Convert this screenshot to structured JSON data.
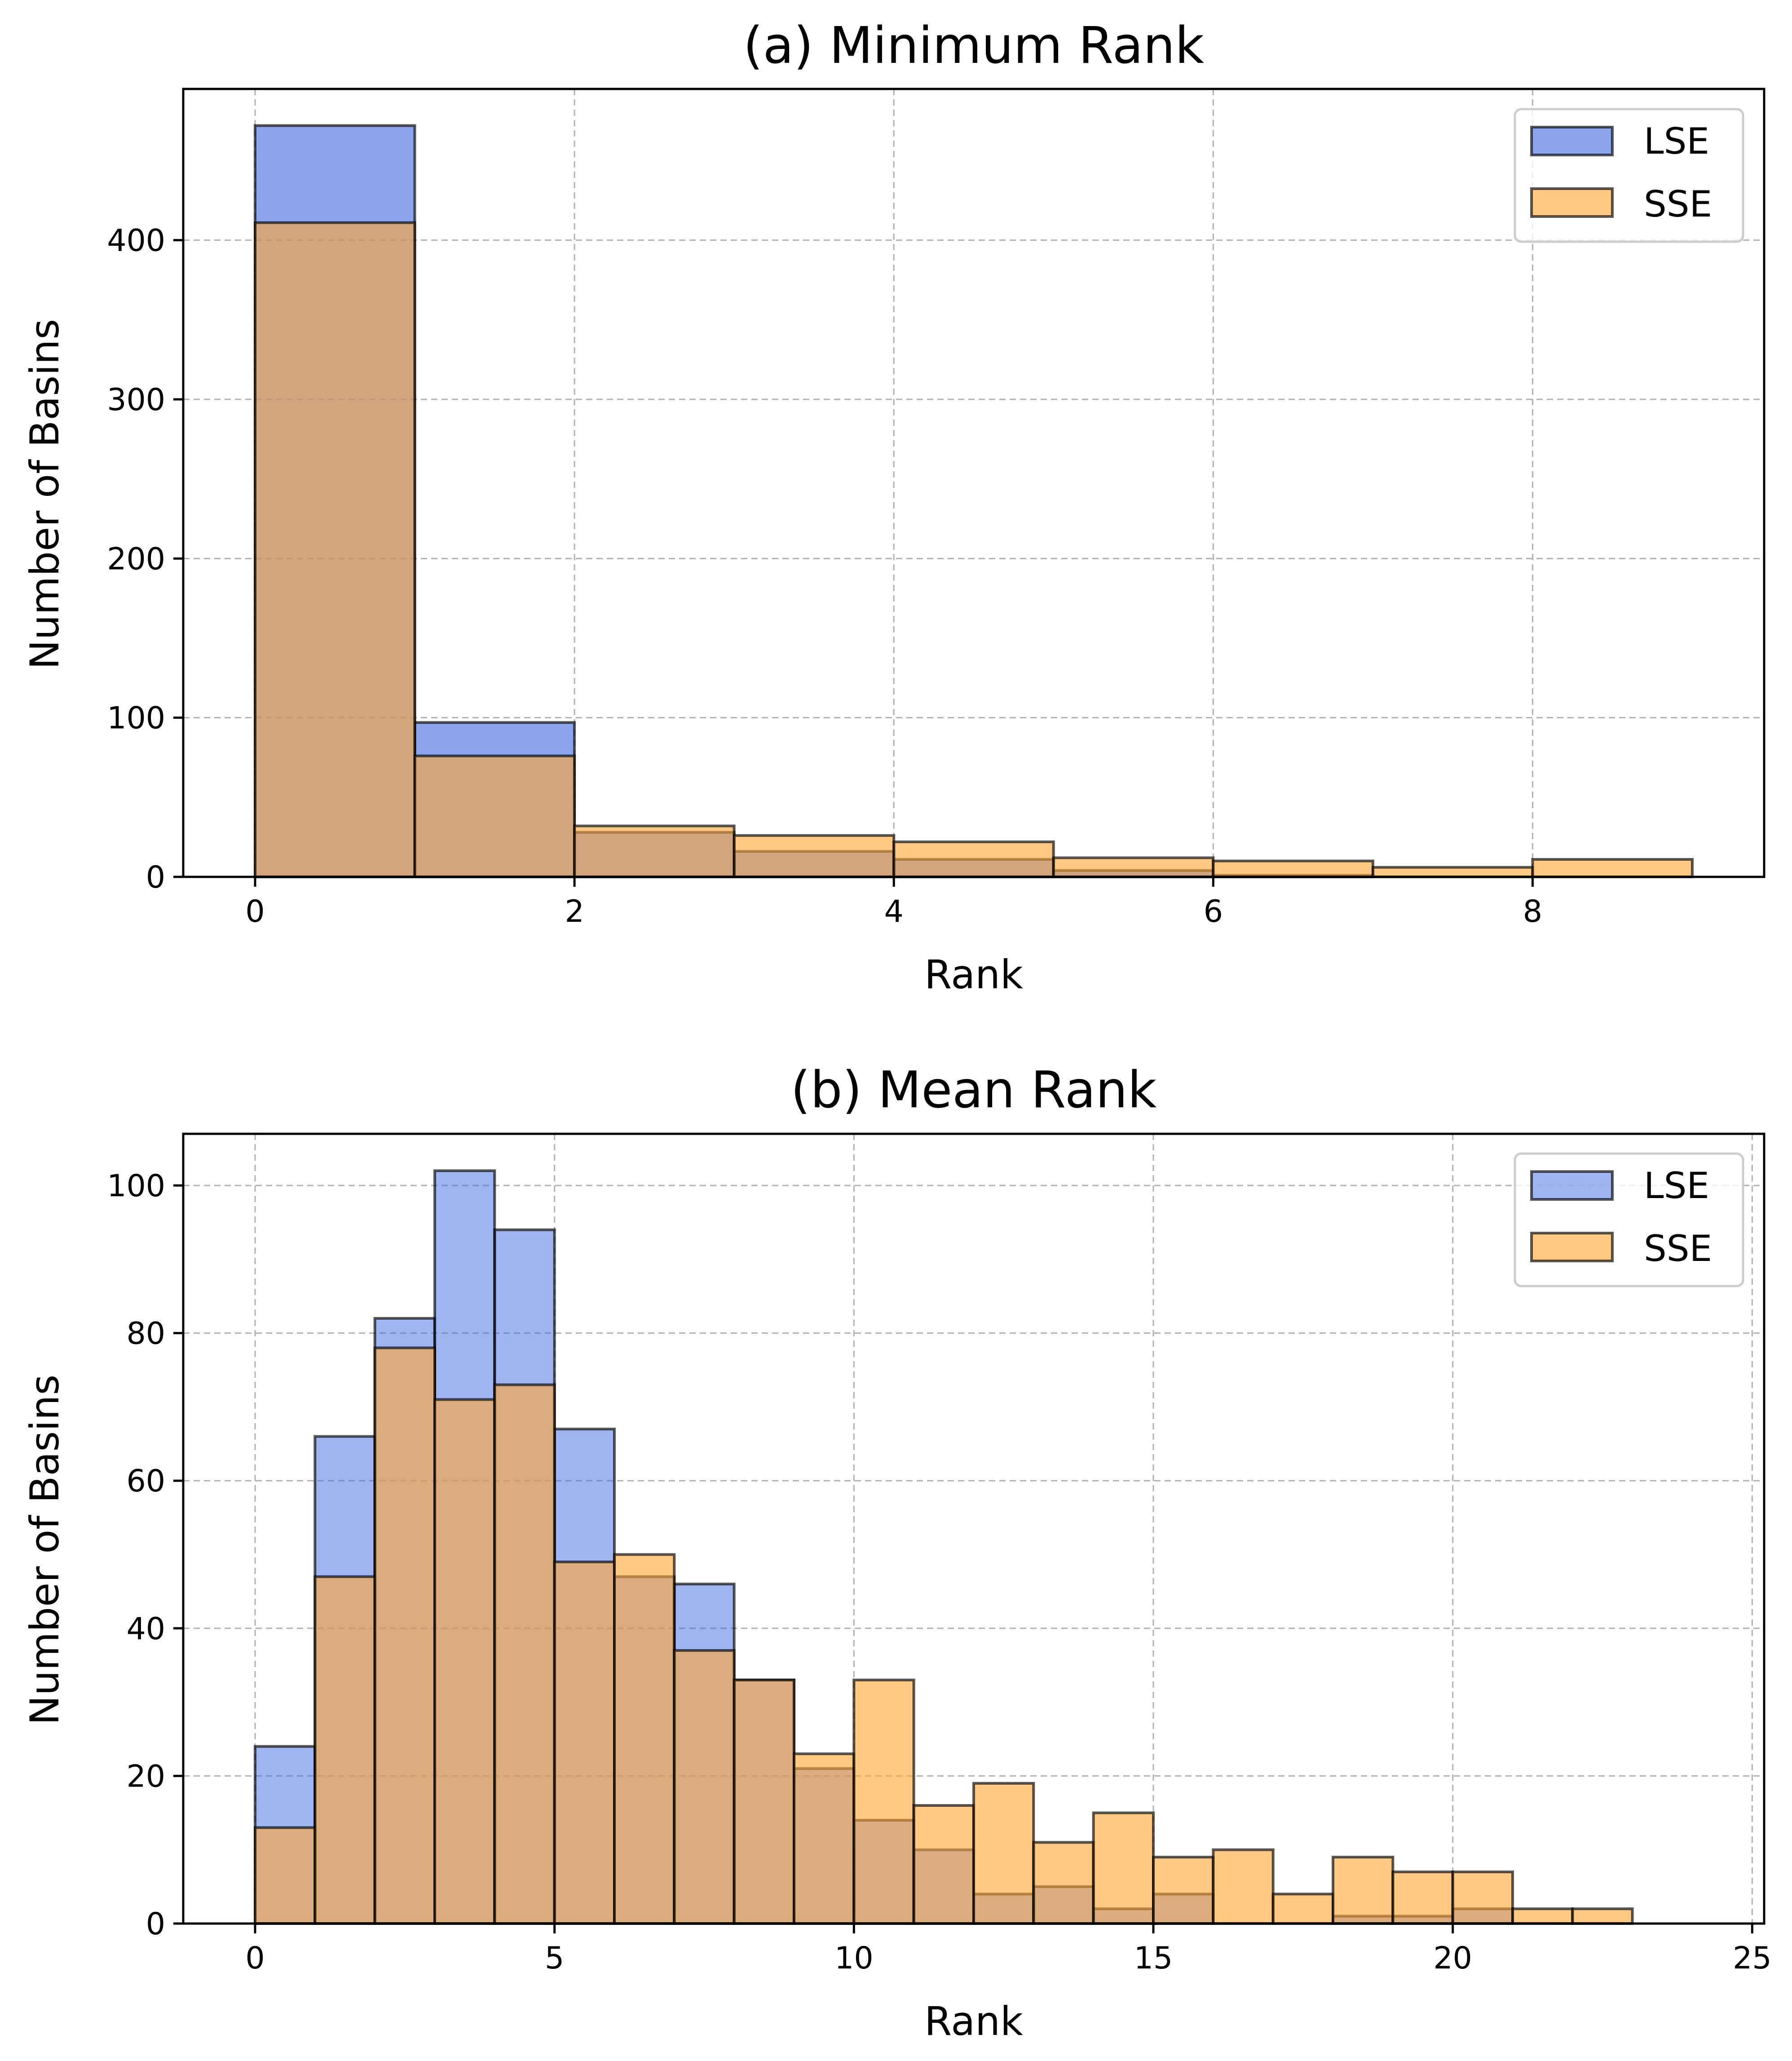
{
  "colors": {
    "lse": "#4169E1",
    "sse": "#FFA533",
    "edge": "#000000",
    "grid": "#b0b0b0"
  },
  "chart_data": [
    {
      "type": "bar",
      "title": "(a) Minimum Rank",
      "xlabel": "Rank",
      "ylabel": "Number of Basins",
      "xlim": [
        -0.45,
        9.45
      ],
      "ylim": [
        0,
        495
      ],
      "xticks": [
        0,
        2,
        4,
        6,
        8
      ],
      "yticks": [
        0,
        100,
        200,
        300,
        400
      ],
      "bin_edges": [
        0,
        1,
        2,
        3,
        4,
        5,
        6,
        7,
        8,
        9
      ],
      "grid": true,
      "legend": "upper right",
      "series": [
        {
          "name": "LSE",
          "values": [
            472,
            97,
            28,
            16,
            11,
            4,
            1,
            0,
            0
          ],
          "opacity": 0.6
        },
        {
          "name": "SSE",
          "values": [
            411,
            76,
            32,
            26,
            22,
            12,
            10,
            6,
            11
          ],
          "opacity": 0.6
        }
      ]
    },
    {
      "type": "bar",
      "title": "(b) Mean Rank",
      "xlabel": "Rank",
      "ylabel": "Number of Basins",
      "xlim": [
        -1.2,
        25.2
      ],
      "ylim": [
        0,
        107
      ],
      "xticks": [
        0,
        5,
        10,
        15,
        20,
        25
      ],
      "yticks": [
        0,
        20,
        40,
        60,
        80,
        100
      ],
      "bin_edges": [
        0,
        1,
        2,
        3,
        4,
        5,
        6,
        7,
        8,
        9,
        10,
        11,
        12,
        13,
        14,
        15,
        16,
        17,
        18,
        19,
        20,
        21,
        22,
        23,
        24
      ],
      "grid": true,
      "legend": "upper right",
      "series": [
        {
          "name": "LSE",
          "values": [
            24,
            66,
            82,
            102,
            94,
            67,
            47,
            46,
            33,
            21,
            14,
            10,
            4,
            5,
            2,
            4,
            0,
            0,
            1,
            1,
            2,
            0,
            0,
            0
          ],
          "opacity": 0.5
        },
        {
          "name": "SSE",
          "values": [
            13,
            47,
            78,
            71,
            73,
            49,
            50,
            37,
            33,
            23,
            33,
            16,
            19,
            11,
            15,
            9,
            10,
            4,
            9,
            7,
            7,
            2,
            2,
            0
          ],
          "opacity": 0.6
        }
      ]
    }
  ]
}
